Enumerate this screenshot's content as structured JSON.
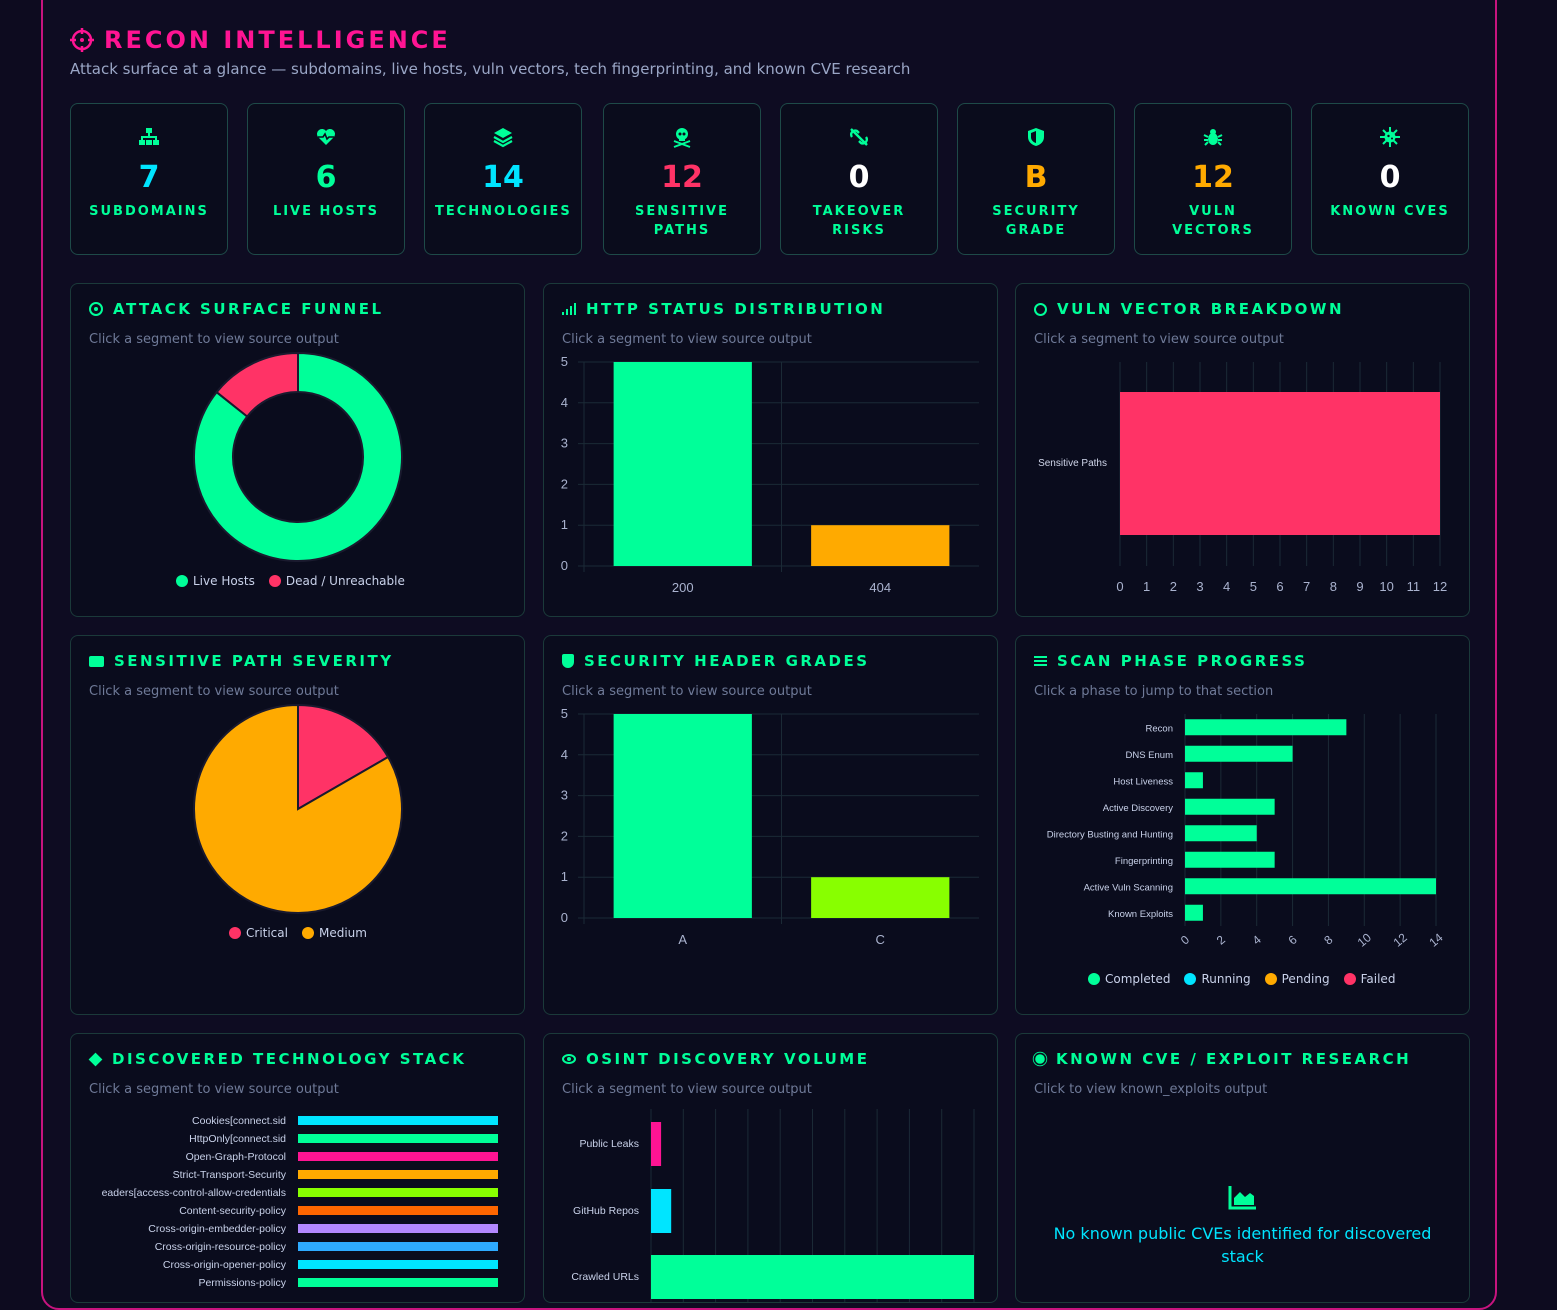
{
  "header": {
    "title": "RECON INTELLIGENCE",
    "subtitle": "Attack surface at a glance — subdomains, live hosts, vuln vectors, tech fingerprinting, and known CVE research"
  },
  "stats": [
    {
      "value": "7",
      "label": "SUBDOMAINS",
      "icon": "sitemap-icon",
      "color": "#00e5ff"
    },
    {
      "value": "6",
      "label": "LIVE HOSTS",
      "icon": "heartbeat-icon",
      "color": "#00ff99"
    },
    {
      "value": "14",
      "label": "TECHNOLOGIES",
      "icon": "layers-icon",
      "color": "#00e5ff"
    },
    {
      "value": "12",
      "label": "SENSITIVE PATHS",
      "icon": "skull-icon",
      "color": "#ff3366"
    },
    {
      "value": "0",
      "label": "TAKEOVER RISKS",
      "icon": "broken-link-icon",
      "color": "#ffffff"
    },
    {
      "value": "B",
      "label": "SECURITY GRADE",
      "icon": "shield-icon",
      "color": "#ffaa00"
    },
    {
      "value": "12",
      "label": "VULN VECTORS",
      "icon": "bug-icon",
      "color": "#ffaa00"
    },
    {
      "value": "0",
      "label": "KNOWN CVES",
      "icon": "virus-icon",
      "color": "#ffffff"
    }
  ],
  "hint_segment": "Click a segment to view source output",
  "panels": {
    "funnel": {
      "title": "ATTACK SURFACE FUNNEL",
      "icon": "target-icon"
    },
    "http": {
      "title": "HTTP STATUS DISTRIBUTION",
      "icon": "signal-icon"
    },
    "vuln": {
      "title": "VULN VECTOR BREAKDOWN",
      "icon": "crosshair-icon"
    },
    "sensitive": {
      "title": "SENSITIVE PATH SEVERITY",
      "icon": "folder-icon"
    },
    "headers": {
      "title": "SECURITY HEADER GRADES",
      "icon": "shield-half-icon"
    },
    "phase": {
      "title": "SCAN PHASE PROGRESS",
      "icon": "list-check-icon",
      "hint": "Click a phase to jump to that section"
    },
    "tech": {
      "title": "DISCOVERED TECHNOLOGY STACK",
      "icon": "layers-icon"
    },
    "osint": {
      "title": "OSINT DISCOVERY VOLUME",
      "icon": "eye-icon"
    },
    "cve": {
      "title": "KNOWN CVE / EXPLOIT RESEARCH",
      "icon": "virus-icon",
      "hint": "Click to view known_exploits output",
      "empty_icon": "area-chart-icon",
      "empty_text": "No known public CVEs identified for discovered stack"
    }
  },
  "chart_data": [
    {
      "id": "funnel",
      "type": "pie",
      "donut": true,
      "categories": [
        "Live Hosts",
        "Dead / Unreachable"
      ],
      "values": [
        6,
        1
      ],
      "colors": [
        "#00ff99",
        "#ff3366"
      ],
      "legend": "bottom"
    },
    {
      "id": "http",
      "type": "bar",
      "categories": [
        "200",
        "404"
      ],
      "values": [
        5,
        1
      ],
      "colors": [
        "#00ff99",
        "#ffaa00"
      ],
      "ylim": [
        0,
        5
      ],
      "yticks": [
        "0",
        "1",
        "2",
        "3",
        "4",
        "5"
      ]
    },
    {
      "id": "vuln",
      "type": "bar",
      "orientation": "horizontal",
      "categories": [
        "Sensitive Paths"
      ],
      "values": [
        12
      ],
      "colors": [
        "#ff3366"
      ],
      "xlim": [
        0,
        12
      ],
      "xticks": [
        "0",
        "1",
        "2",
        "3",
        "4",
        "5",
        "6",
        "7",
        "8",
        "9",
        "10",
        "11",
        "12"
      ]
    },
    {
      "id": "sensitive",
      "type": "pie",
      "categories": [
        "Critical",
        "Medium"
      ],
      "values": [
        2,
        10
      ],
      "colors": [
        "#ff3366",
        "#ffaa00"
      ],
      "legend": "bottom"
    },
    {
      "id": "headers",
      "type": "bar",
      "categories": [
        "A",
        "C"
      ],
      "values": [
        5,
        1
      ],
      "colors": [
        "#00ff99",
        "#88ff00"
      ],
      "ylim": [
        0,
        5
      ],
      "yticks": [
        "0",
        "1",
        "2",
        "3",
        "4",
        "5"
      ]
    },
    {
      "id": "phase",
      "type": "bar",
      "orientation": "horizontal",
      "categories": [
        "Recon",
        "DNS Enum",
        "Host Liveness",
        "Active Discovery",
        "Directory Busting and Hunting",
        "Fingerprinting",
        "Active Vuln Scanning",
        "Known Exploits"
      ],
      "values": [
        9,
        6,
        1,
        5,
        4,
        5,
        14,
        1
      ],
      "xlim": [
        0,
        14
      ],
      "xticks": [
        "0",
        "2",
        "4",
        "6",
        "8",
        "10",
        "12",
        "14"
      ],
      "legend_items": [
        {
          "name": "Completed",
          "color": "#00ff99"
        },
        {
          "name": "Running",
          "color": "#00e5ff"
        },
        {
          "name": "Pending",
          "color": "#ffaa00"
        },
        {
          "name": "Failed",
          "color": "#ff3366"
        }
      ]
    },
    {
      "id": "tech",
      "type": "bar",
      "orientation": "horizontal",
      "categories": [
        "Cookies[connect.sid",
        "HttpOnly[connect.sid",
        "Open-Graph-Protocol",
        "Strict-Transport-Security",
        "eaders[access-control-allow-credentials",
        "Content-security-policy",
        "Cross-origin-embedder-policy",
        "Cross-origin-resource-policy",
        "Cross-origin-opener-policy",
        "Permissions-policy"
      ],
      "values": [
        1,
        1,
        1,
        1,
        1,
        1,
        1,
        1,
        1,
        1
      ],
      "colors": [
        "#00e5ff",
        "#00ff99",
        "#ff1493",
        "#ffaa00",
        "#88ff00",
        "#ff6600",
        "#b388ff",
        "#2eaaff",
        "#00e5ff",
        "#00ff99"
      ]
    },
    {
      "id": "osint",
      "type": "bar",
      "orientation": "horizontal",
      "categories": [
        "Public Leaks",
        "GitHub Repos",
        "Crawled URLs"
      ],
      "values": [
        1,
        2,
        32
      ],
      "colors": [
        "#ff1493",
        "#00e5ff",
        "#00ff99"
      ]
    }
  ]
}
